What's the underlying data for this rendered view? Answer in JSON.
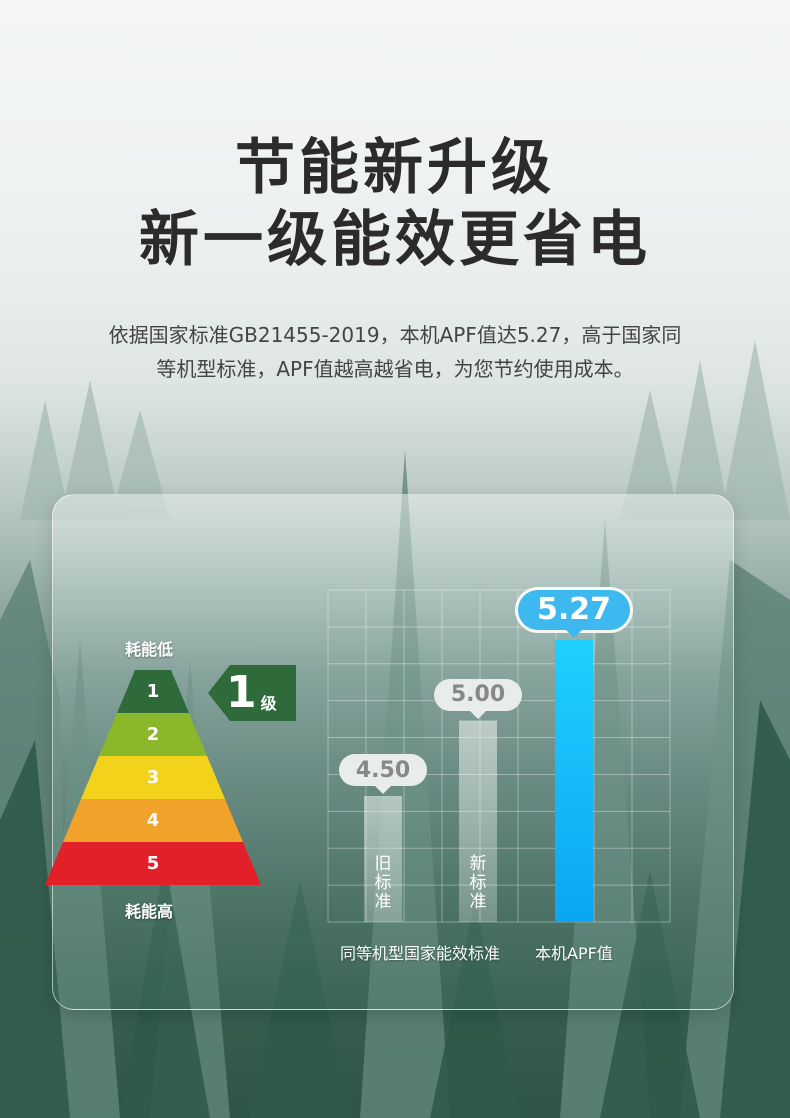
{
  "header": {
    "title_line1": "节能新升级",
    "title_line2": "新一级能效更省电",
    "subtitle_line1": "依据国家标准GB21455-2019，本机APF值达5.27，高于国家同",
    "subtitle_line2": "等机型标准，APF值越高越省电，为您节约使用成本。"
  },
  "energy_scale": {
    "top_label": "耗能低",
    "bottom_label": "耗能高",
    "grades": [
      {
        "label": "1",
        "color": "#2f6b3a"
      },
      {
        "label": "2",
        "color": "#8bb82a"
      },
      {
        "label": "3",
        "color": "#f2d21b"
      },
      {
        "label": "4",
        "color": "#f0a22a"
      },
      {
        "label": "5",
        "color": "#e2202a"
      }
    ],
    "current_grade_number": "1",
    "current_grade_unit": "级",
    "current_grade_color": "#2f6b3a"
  },
  "colors": {
    "bubble_gray": "#e8eceb",
    "bubble_blue": "#3db9f0",
    "bar_blue_top": "#1fd0ff",
    "bar_blue_bottom": "#0aa6f2"
  },
  "chart_data": {
    "type": "bar",
    "ylim": [
      3.4,
      5.6
    ],
    "categories": [
      "旧标准",
      "新标准",
      "本机APF值"
    ],
    "values": [
      4.5,
      5.0,
      5.27
    ],
    "value_labels": [
      "4.50",
      "5.00",
      "5.27"
    ],
    "bar_captions": [
      "旧\n标\n准",
      "新\n标\n准",
      ""
    ],
    "group_labels": [
      "同等机型国家能效标准",
      "本机APF值"
    ],
    "grid": true
  }
}
